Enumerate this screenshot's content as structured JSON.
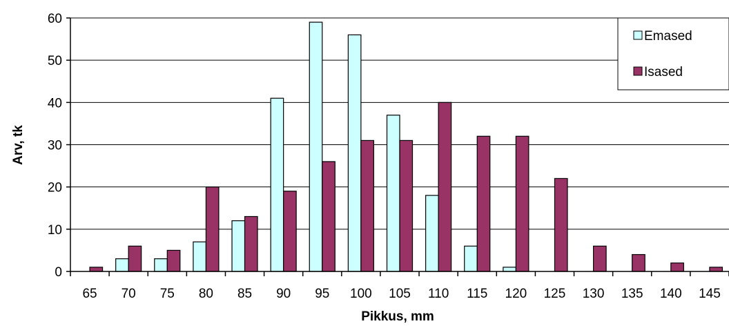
{
  "chart_data": {
    "type": "bar",
    "xlabel": "Pikkus, mm",
    "ylabel": "Arv, tk",
    "ylim": [
      0,
      60
    ],
    "yticks": [
      "0",
      "10",
      "20",
      "30",
      "40",
      "50",
      "60"
    ],
    "categories": [
      "65",
      "70",
      "75",
      "80",
      "85",
      "90",
      "95",
      "100",
      "105",
      "110",
      "115",
      "120",
      "125",
      "130",
      "135",
      "140",
      "145"
    ],
    "series": [
      {
        "name": "Emased",
        "color": "#ccffff",
        "values": [
          0,
          3,
          3,
          7,
          12,
          41,
          59,
          56,
          37,
          18,
          6,
          1,
          0,
          0,
          0,
          0,
          0
        ]
      },
      {
        "name": "Isased",
        "color": "#993366",
        "values": [
          1,
          6,
          5,
          20,
          13,
          19,
          26,
          31,
          31,
          40,
          32,
          32,
          22,
          6,
          4,
          2,
          1
        ]
      }
    ],
    "grid": true,
    "legend": "top-right"
  }
}
